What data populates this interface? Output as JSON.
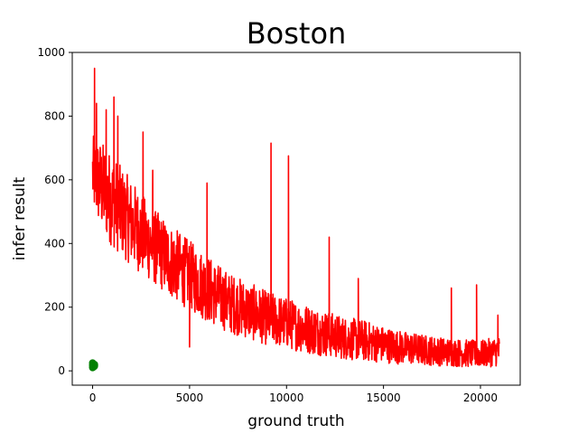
{
  "chart_data": {
    "type": "line",
    "title": "Boston",
    "xlabel": "ground truth",
    "ylabel": "infer result",
    "xlim": [
      -1050,
      22050
    ],
    "ylim": [
      -45,
      1000
    ],
    "x_ticks": [
      0,
      5000,
      10000,
      15000,
      20000
    ],
    "x_tick_labels": [
      "0",
      "5000",
      "10000",
      "15000",
      "20000"
    ],
    "y_ticks": [
      0,
      200,
      400,
      600,
      800,
      1000
    ],
    "y_tick_labels": [
      "0",
      "200",
      "400",
      "600",
      "800",
      "1000"
    ],
    "grid": false,
    "series": [
      {
        "color": "#ff0000",
        "style": "line",
        "x_range": [
          0,
          21000
        ],
        "envelope": [
          {
            "x": 0,
            "low": 500,
            "high": 740
          },
          {
            "x": 500,
            "low": 430,
            "high": 720
          },
          {
            "x": 1000,
            "low": 390,
            "high": 680
          },
          {
            "x": 2000,
            "low": 330,
            "high": 600
          },
          {
            "x": 3000,
            "low": 280,
            "high": 520
          },
          {
            "x": 4000,
            "low": 230,
            "high": 460
          },
          {
            "x": 5000,
            "low": 190,
            "high": 410
          },
          {
            "x": 6000,
            "low": 150,
            "high": 360
          },
          {
            "x": 7000,
            "low": 120,
            "high": 310
          },
          {
            "x": 8000,
            "low": 100,
            "high": 280
          },
          {
            "x": 9000,
            "low": 80,
            "high": 250
          },
          {
            "x": 10000,
            "low": 70,
            "high": 230
          },
          {
            "x": 11000,
            "low": 55,
            "high": 210
          },
          {
            "x": 12000,
            "low": 45,
            "high": 190
          },
          {
            "x": 13000,
            "low": 35,
            "high": 170
          },
          {
            "x": 14000,
            "low": 30,
            "high": 160
          },
          {
            "x": 15000,
            "low": 25,
            "high": 140
          },
          {
            "x": 16000,
            "low": 20,
            "high": 125
          },
          {
            "x": 17000,
            "low": 18,
            "high": 115
          },
          {
            "x": 18000,
            "low": 15,
            "high": 105
          },
          {
            "x": 19000,
            "low": 12,
            "high": 100
          },
          {
            "x": 20000,
            "low": 10,
            "high": 95
          },
          {
            "x": 21000,
            "low": 15,
            "high": 110
          }
        ],
        "spikes": [
          {
            "x": 100,
            "y": 950
          },
          {
            "x": 200,
            "y": 840
          },
          {
            "x": 700,
            "y": 820
          },
          {
            "x": 1100,
            "y": 860
          },
          {
            "x": 1300,
            "y": 800
          },
          {
            "x": 2600,
            "y": 750
          },
          {
            "x": 3100,
            "y": 630
          },
          {
            "x": 5900,
            "y": 590
          },
          {
            "x": 9200,
            "y": 715
          },
          {
            "x": 10100,
            "y": 675
          },
          {
            "x": 12200,
            "y": 420
          },
          {
            "x": 13700,
            "y": 290
          },
          {
            "x": 18500,
            "y": 260
          },
          {
            "x": 19800,
            "y": 270
          },
          {
            "x": 20900,
            "y": 175
          },
          {
            "x": 5000,
            "y": 75
          }
        ]
      },
      {
        "color": "#008000",
        "style": "scatter",
        "points": [
          {
            "x": 0,
            "y": 10
          },
          {
            "x": 0,
            "y": 15
          },
          {
            "x": 0,
            "y": 20
          },
          {
            "x": 0,
            "y": 25
          },
          {
            "x": 50,
            "y": 12
          },
          {
            "x": 50,
            "y": 18
          },
          {
            "x": 50,
            "y": 22
          },
          {
            "x": 100,
            "y": 15
          },
          {
            "x": 100,
            "y": 20
          }
        ]
      }
    ]
  }
}
